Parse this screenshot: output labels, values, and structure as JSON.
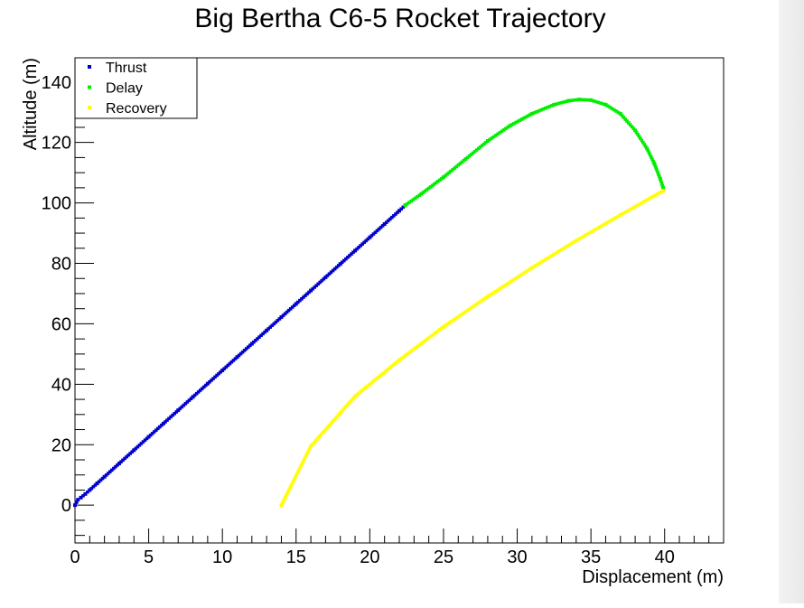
{
  "chart_data": {
    "type": "scatter",
    "title": "Big Bertha C6-5 Rocket Trajectory",
    "xlabel": "Displacement (m)",
    "ylabel": "Altitude (m)",
    "xlim": [
      0,
      44
    ],
    "ylim": [
      -12.5,
      148
    ],
    "xticks": [
      0,
      5,
      10,
      15,
      20,
      25,
      30,
      35,
      40
    ],
    "yticks": [
      0,
      20,
      40,
      60,
      80,
      100,
      120,
      140
    ],
    "grid": false,
    "legend_position": "top-left",
    "series": [
      {
        "name": "Thrust",
        "color": "#0000cc",
        "x": [
          0,
          0.1,
          0.2,
          0.4,
          0.7,
          1.0,
          1.5,
          2.0,
          3.0,
          4.0,
          5.0,
          6.0,
          7.0,
          8.0,
          9.0,
          10.0,
          11.0,
          12.0,
          13.0,
          14.0,
          15.0,
          16.0,
          17.0,
          18.0,
          19.0,
          20.0,
          21.0,
          22.0,
          22.4
        ],
        "y": [
          0,
          1,
          1.8,
          2.5,
          3.7,
          5,
          7.2,
          9.4,
          13.8,
          18.2,
          22.6,
          27,
          31.4,
          35.8,
          40.2,
          44.6,
          49,
          53.4,
          57.8,
          62.2,
          66.6,
          71,
          75.4,
          79.8,
          84.2,
          88.6,
          93,
          97.4,
          99.2
        ]
      },
      {
        "name": "Delay",
        "color": "#00ee00",
        "x": [
          22.4,
          23.5,
          25.0,
          26.5,
          28.0,
          29.5,
          31.0,
          32.5,
          33.5,
          34.2,
          35.0,
          36.0,
          37.0,
          38.0,
          38.8,
          39.3,
          39.7,
          39.9
        ],
        "y": [
          99.2,
          103,
          108.5,
          114.5,
          120.5,
          125.5,
          129.5,
          132.5,
          133.8,
          134.2,
          134,
          132.5,
          129.5,
          124,
          118,
          113,
          108,
          105
        ]
      },
      {
        "name": "Recovery",
        "color": "#ffff00",
        "x": [
          39.9,
          37,
          34,
          31,
          28,
          25,
          22,
          19,
          16,
          14.0
        ],
        "y": [
          104,
          96,
          87.5,
          78.5,
          69,
          59,
          48,
          36,
          19.5,
          0
        ]
      }
    ]
  }
}
